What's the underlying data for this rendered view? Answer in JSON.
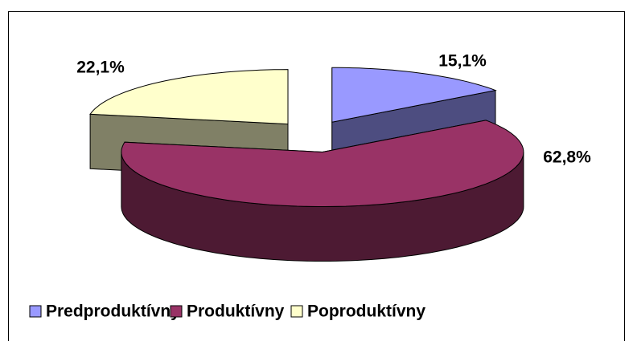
{
  "chart_data": {
    "type": "pie3d",
    "categories": [
      "Predproduktívny",
      "Produktívny",
      "Poproduktívny"
    ],
    "values": [
      15.1,
      62.8,
      22.1
    ],
    "value_labels": [
      "15,1%",
      "62,8%",
      "22,1%"
    ],
    "colors": [
      "#9999ff",
      "#993366",
      "#ffffcc"
    ],
    "side_colors": [
      "#4d4d80",
      "#4d1a33",
      "#808066"
    ],
    "legend": "bottom"
  }
}
